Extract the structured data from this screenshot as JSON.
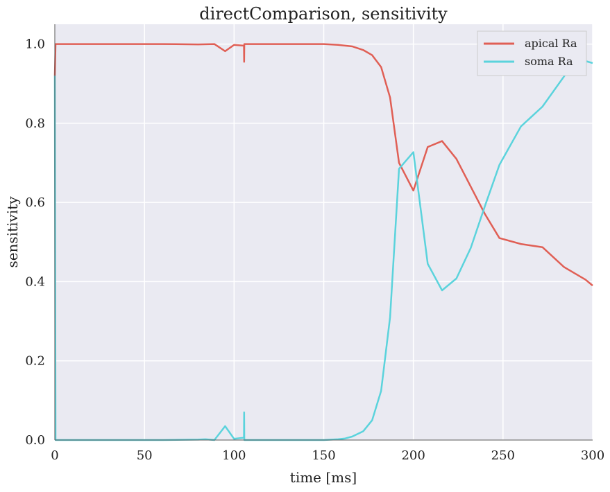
{
  "chart_data": {
    "type": "line",
    "title": "directComparison, sensitivity",
    "xlabel": "time [ms]",
    "ylabel": "sensitivity",
    "xlim": [
      0,
      300
    ],
    "ylim": [
      0,
      1.05
    ],
    "xticks": [
      0,
      50,
      100,
      150,
      200,
      250,
      300
    ],
    "xtick_labels": [
      "0",
      "50",
      "100",
      "150",
      "200",
      "250",
      "300"
    ],
    "yticks": [
      0.0,
      0.2,
      0.4,
      0.6,
      0.8,
      1.0
    ],
    "ytick_labels": [
      "0.0",
      "0.2",
      "0.4",
      "0.6",
      "0.8",
      "1.0"
    ],
    "grid": true,
    "legend_position": "top-right",
    "series": [
      {
        "name": "apical Ra",
        "color": "#e05f55",
        "points": [
          [
            0,
            0.92
          ],
          [
            0.4,
            1.0
          ],
          [
            3,
            1.0
          ],
          [
            30,
            1.0
          ],
          [
            60,
            1.0
          ],
          [
            80,
            0.999
          ],
          [
            89,
            1.0
          ],
          [
            95,
            0.982
          ],
          [
            100,
            0.998
          ],
          [
            105.5,
            0.996
          ],
          [
            105.6,
            0.955
          ],
          [
            105.7,
            1.0
          ],
          [
            108,
            1.0
          ],
          [
            130,
            1.0
          ],
          [
            150,
            1.0
          ],
          [
            158,
            0.998
          ],
          [
            166,
            0.994
          ],
          [
            172,
            0.985
          ],
          [
            177,
            0.972
          ],
          [
            182,
            0.942
          ],
          [
            187,
            0.865
          ],
          [
            192,
            0.7
          ],
          [
            200,
            0.63
          ],
          [
            208,
            0.74
          ],
          [
            216,
            0.755
          ],
          [
            224,
            0.71
          ],
          [
            232,
            0.64
          ],
          [
            240,
            0.57
          ],
          [
            248,
            0.51
          ],
          [
            260,
            0.495
          ],
          [
            272,
            0.487
          ],
          [
            284,
            0.437
          ],
          [
            296,
            0.405
          ],
          [
            300,
            0.39
          ]
        ]
      },
      {
        "name": "soma Ra",
        "color": "#5bd3dc",
        "points": [
          [
            0,
            0.92
          ],
          [
            0.4,
            0.0
          ],
          [
            3,
            0.0
          ],
          [
            30,
            0.0
          ],
          [
            60,
            0.0
          ],
          [
            80,
            0.001
          ],
          [
            84,
            0.002
          ],
          [
            89,
            0.0
          ],
          [
            95,
            0.035
          ],
          [
            100,
            0.003
          ],
          [
            105.5,
            0.006
          ],
          [
            105.6,
            0.07
          ],
          [
            105.7,
            0.0
          ],
          [
            108,
            0.0
          ],
          [
            130,
            0.0
          ],
          [
            150,
            0.0
          ],
          [
            158,
            0.002
          ],
          [
            162,
            0.004
          ],
          [
            166,
            0.009
          ],
          [
            172,
            0.022
          ],
          [
            177,
            0.05
          ],
          [
            182,
            0.124
          ],
          [
            187,
            0.31
          ],
          [
            192,
            0.685
          ],
          [
            200,
            0.727
          ],
          [
            208,
            0.445
          ],
          [
            216,
            0.378
          ],
          [
            224,
            0.408
          ],
          [
            232,
            0.485
          ],
          [
            240,
            0.592
          ],
          [
            248,
            0.695
          ],
          [
            260,
            0.792
          ],
          [
            272,
            0.842
          ],
          [
            284,
            0.918
          ],
          [
            290,
            0.96
          ],
          [
            296,
            0.957
          ],
          [
            300,
            0.952
          ]
        ]
      }
    ]
  }
}
